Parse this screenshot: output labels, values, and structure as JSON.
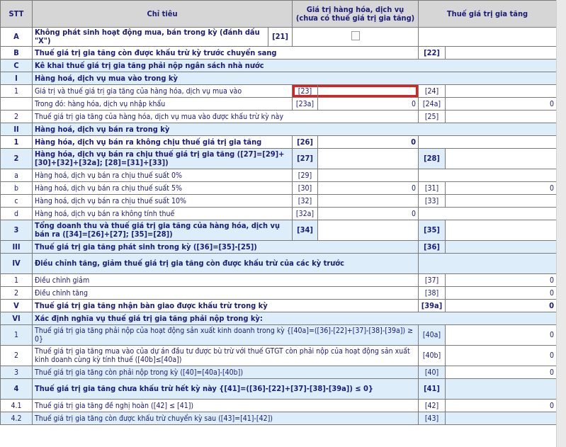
{
  "header": {
    "stt": "STT",
    "chi_tieu": "Chỉ tiêu",
    "gia_tri": "Giá trị hàng hóa, dịch vụ (chưa có thuế giá trị gia tăng)",
    "thue": "Thuế giá trị gia tăng"
  },
  "colors": {
    "shade": "#ddeefa",
    "text": "#1b1b7a",
    "highlight": "#e02020"
  },
  "rows": [
    {
      "stt": "A",
      "label": "Không phát sinh hoạt động mua, bán trong kỳ (đánh dấu \"X\")",
      "bold": true,
      "shade": false,
      "layout": "check",
      "lc": "[21]",
      "checked": false
    },
    {
      "stt": "B",
      "label": "Thuế giá trị gia tăng còn được khấu trừ kỳ trước chuyển sang",
      "bold": true,
      "shade": false,
      "layout": "right",
      "c2": "[22]",
      "v2": ""
    },
    {
      "stt": "C",
      "label": "Kê khai thuế giá trị gia tăng phải nộp ngân sách nhà nước",
      "bold": true,
      "shade": true,
      "layout": "full"
    },
    {
      "stt": "I",
      "label": "Hàng hoá, dịch vụ mua vào trong kỳ",
      "bold": true,
      "shade": true,
      "layout": "full"
    },
    {
      "stt": "1",
      "label": "Giá trị và thuế giá trị gia tăng của hàng hóa, dịch vụ mua vào",
      "bold": false,
      "shade": false,
      "layout": "both",
      "c1": "[23]",
      "v1": "",
      "c2": "[24]",
      "v2": "",
      "highlight": true
    },
    {
      "stt": "",
      "label": "Trong đó: hàng hóa, dịch vụ nhập khẩu",
      "bold": false,
      "shade": false,
      "layout": "both",
      "c1": "[23a]",
      "v1": "0",
      "c2": "[24a]",
      "v2": "0"
    },
    {
      "stt": "2",
      "label": "Thuế giá trị gia tăng của hàng hóa, dịch vụ mua vào được khấu trừ kỳ này",
      "bold": false,
      "shade": false,
      "layout": "right",
      "c2": "[25]",
      "v2": ""
    },
    {
      "stt": "II",
      "label": "Hàng hoá, dịch vụ bán ra trong kỳ",
      "bold": true,
      "shade": true,
      "layout": "full"
    },
    {
      "stt": "1",
      "label": "Hàng hóa, dịch vụ bán ra không chịu thuế giá trị gia tăng",
      "bold": true,
      "shade": false,
      "layout": "left",
      "c1": "[26]",
      "v1": "0"
    },
    {
      "stt": "2",
      "label": "Hàng hóa, dịch vụ bán ra chịu thuế giá trị gia tăng ([27]=[29]+[30]+[32]+[32a]; [28]=[31]+[33])",
      "bold": true,
      "shade": true,
      "layout": "both",
      "c1": "[27]",
      "v1": "",
      "c2": "[28]",
      "v2": ""
    },
    {
      "stt": "a",
      "label": "Hàng hoá, dịch vụ bán ra chịu thuế suất 0%",
      "bold": false,
      "shade": false,
      "layout": "left",
      "c1": "[29]",
      "v1": ""
    },
    {
      "stt": "b",
      "label": "Hàng hoá, dịch vụ bán ra chịu thuế suất 5%",
      "bold": false,
      "shade": false,
      "layout": "both",
      "c1": "[30]",
      "v1": "0",
      "c2": "[31]",
      "v2": "0"
    },
    {
      "stt": "c",
      "label": "Hàng hoá, dịch vụ bán ra chịu thuế suất 10%",
      "bold": false,
      "shade": false,
      "layout": "both",
      "c1": "[32]",
      "v1": "",
      "c2": "[33]",
      "v2": ""
    },
    {
      "stt": "d",
      "label": "Hàng hoá, dịch vụ bán ra không tính thuế",
      "bold": false,
      "shade": false,
      "layout": "left",
      "c1": "[32a]",
      "v1": "0"
    },
    {
      "stt": "3",
      "label": "Tổng doanh thu và thuế giá trị gia tăng của hàng hóa, dịch vụ bán ra ([34]=[26]+[27]; [35]=[28])",
      "bold": true,
      "shade": true,
      "layout": "both",
      "c1": "[34]",
      "v1": "",
      "c2": "[35]",
      "v2": ""
    },
    {
      "stt": "III",
      "label": "Thuế giá trị gia tăng phát sinh trong kỳ ([36]=[35]-[25])",
      "bold": true,
      "shade": true,
      "layout": "right",
      "c2": "[36]",
      "v2": ""
    },
    {
      "stt": "IV",
      "label": "Điều chỉnh tăng, giảm thuế giá trị gia tăng còn được khấu trừ của các kỳ trước",
      "bold": true,
      "shade": true,
      "layout": "lefthalf"
    },
    {
      "stt": "1",
      "label": "Điều chỉnh giảm",
      "bold": false,
      "shade": false,
      "layout": "right",
      "c2": "[37]",
      "v2": "0"
    },
    {
      "stt": "2",
      "label": "Điều chỉnh tăng",
      "bold": false,
      "shade": false,
      "layout": "right",
      "c2": "[38]",
      "v2": "0"
    },
    {
      "stt": "V",
      "label": "Thuế giá trị gia tăng nhận bàn giao được khấu trừ trong kỳ",
      "bold": true,
      "shade": false,
      "layout": "right",
      "c2": "[39a]",
      "v2": "0"
    },
    {
      "stt": "VI",
      "label": "Xác định nghĩa vụ thuế giá trị gia tăng phải nộp trong kỳ:",
      "bold": true,
      "shade": true,
      "layout": "full"
    },
    {
      "stt": "1",
      "label": "Thuế giá trị gia tăng phải nộp của hoạt động sản xuất kinh doanh trong kỳ {[40a]=([36]-[22]+[37]-[38]-[39a]) ≥ 0}",
      "bold": false,
      "shade": true,
      "layout": "right",
      "c2": "[40a]",
      "v2": "0"
    },
    {
      "stt": "2",
      "label": "Thuế giá trị gia tăng mua vào của dự án đầu tư được bù trừ với thuế GTGT còn phải nộp của hoạt động sản xuất kinh doanh cùng kỳ tính thuế ([40b]≤[40a])",
      "bold": false,
      "shade": false,
      "layout": "right",
      "c2": "[40b]",
      "v2": "0"
    },
    {
      "stt": "3",
      "label": "Thuế giá trị gia tăng còn phải nộp trong kỳ ([40]=[40a]-[40b])",
      "bold": false,
      "shade": true,
      "layout": "right",
      "c2": "[40]",
      "v2": "0"
    },
    {
      "stt": "4",
      "label": "Thuế giá trị gia tăng chưa khấu trừ hết kỳ này {[41]=([36]-[22]+[37]-[38]-[39a]) ≤ 0}",
      "bold": true,
      "shade": true,
      "layout": "right",
      "c2": "[41]",
      "v2": ""
    },
    {
      "stt": "4.1",
      "label": "Thuế giá trị gia tăng đề nghị hoàn ([42] ≤ [41])",
      "bold": false,
      "shade": false,
      "layout": "right",
      "c2": "[42]",
      "v2": "0"
    },
    {
      "stt": "4.2",
      "label": "Thuế giá trị gia tăng còn được khấu trừ chuyển kỳ sau ([43]=[41]-[42])",
      "bold": false,
      "shade": true,
      "layout": "right",
      "c2": "[43]",
      "v2": ""
    }
  ]
}
